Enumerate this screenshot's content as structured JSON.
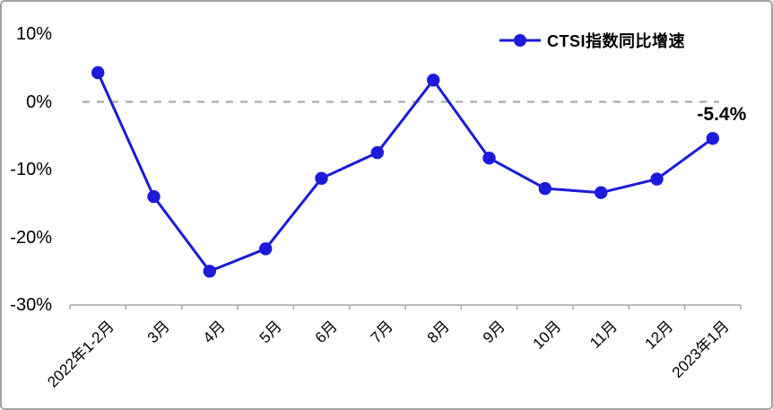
{
  "legend": {
    "label": "CTSI指数同比增速"
  },
  "annotation": {
    "last_value_label": "-5.4%"
  },
  "colors": {
    "line": "#1b1bd9",
    "zero_line": "#ababab",
    "axis": "#a6a6a6",
    "text": "#000000",
    "background": "#ffffff",
    "border": "#a3a3a3"
  },
  "chart_data": {
    "type": "line",
    "title": "",
    "legend_entries": [
      "CTSI指数同比增速"
    ],
    "legend_position": "top-right",
    "categories": [
      "2022年1-2月",
      "3月",
      "4月",
      "5月",
      "6月",
      "7月",
      "8月",
      "9月",
      "10月",
      "11月",
      "12月",
      "2023年1月"
    ],
    "series": [
      {
        "name": "CTSI指数同比增速",
        "values": [
          4.3,
          -14.0,
          -25.0,
          -21.7,
          -11.3,
          -7.5,
          3.2,
          -8.3,
          -12.8,
          -13.4,
          -11.4,
          -5.4
        ]
      }
    ],
    "y_ticks": [
      {
        "label": "10%",
        "value": 10
      },
      {
        "label": "0%",
        "value": 0
      },
      {
        "label": "-10%",
        "value": -10
      },
      {
        "label": "-20%",
        "value": -20
      },
      {
        "label": "-30%",
        "value": -30
      }
    ],
    "ylim": [
      -30,
      10
    ],
    "xlabel": "",
    "ylabel": "",
    "grid": "dashed zero line only",
    "data_label": {
      "index": 11,
      "text": "-5.4%"
    }
  }
}
